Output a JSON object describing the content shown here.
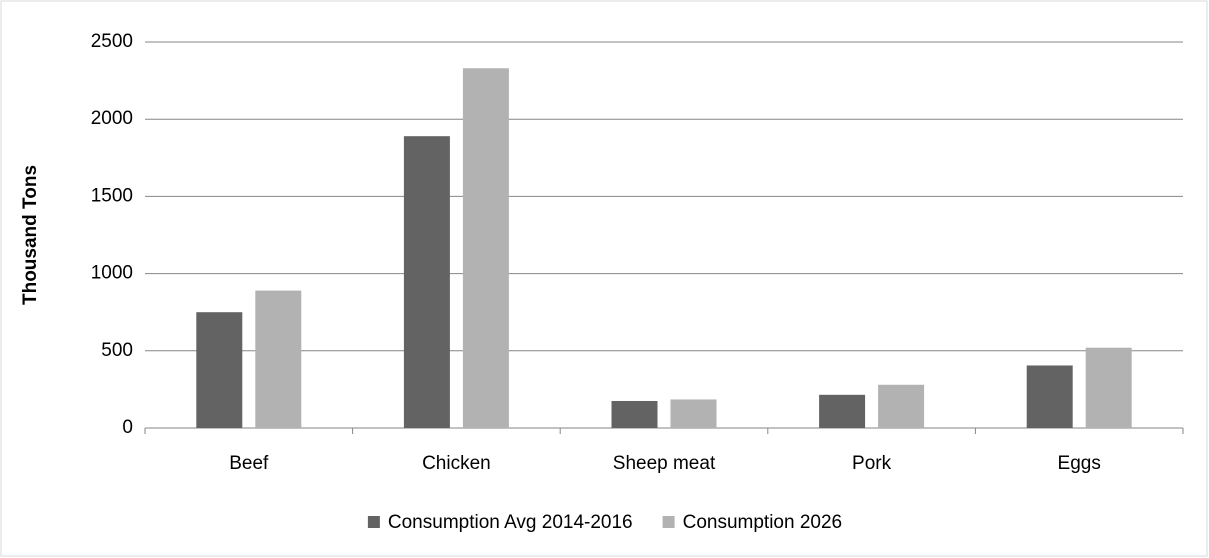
{
  "chart_data": {
    "type": "bar",
    "y_label": "Thousand Tons",
    "categories": [
      "Beef",
      "Chicken",
      "Sheep meat",
      "Pork",
      "Eggs"
    ],
    "series": [
      {
        "name": "Consumption Avg 2014-2016",
        "color": "#636363",
        "values": [
          750,
          1890,
          175,
          215,
          405
        ]
      },
      {
        "name": "Consumption 2026",
        "color": "#b2b2b2",
        "values": [
          890,
          2330,
          185,
          280,
          520
        ]
      }
    ],
    "ylim": [
      0,
      2500
    ],
    "yticks": [
      0,
      500,
      1000,
      1500,
      2000,
      2500
    ],
    "grid": true,
    "legend": "bottom"
  }
}
